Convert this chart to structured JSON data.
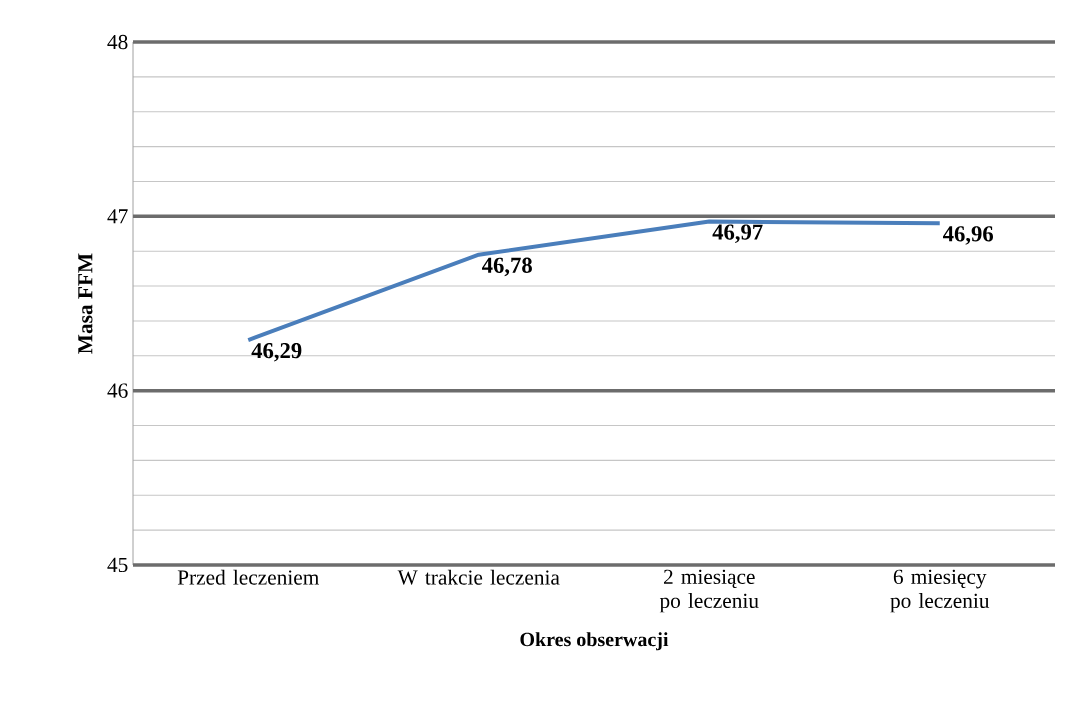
{
  "chart_data": {
    "type": "line",
    "xlabel": "Okres obserwacji",
    "ylabel": "Masa  FFM",
    "categories": [
      "Przed leczeniem",
      "W trakcie leczenia",
      "2 miesiące po leczeniu",
      "6 miesięcy po leczeniu"
    ],
    "values": [
      46.29,
      46.78,
      46.97,
      46.96
    ],
    "value_labels": [
      "46,29",
      "46,78",
      "46,97",
      "46,96"
    ],
    "color": "#4a7ebb",
    "ylim": [
      45,
      48
    ],
    "yticks": [
      45,
      {
        "value": 45.2,
        "label": null
      },
      {
        "value": 45.4,
        "label": null
      },
      {
        "value": 45.6,
        "label": null
      },
      {
        "value": 45.8,
        "label": null
      },
      46,
      {
        "value": 46.2,
        "label": null
      },
      {
        "value": 46.4,
        "label": null
      },
      {
        "value": 46.6,
        "label": null
      },
      {
        "value": 46.8,
        "label": null
      },
      47,
      {
        "value": 47.2,
        "label": null
      },
      {
        "value": 47.4,
        "label": null
      },
      {
        "value": 47.6,
        "label": null
      },
      {
        "value": 47.8,
        "label": null
      },
      48
    ],
    "grid": true,
    "marker": "none",
    "line_style": "solid"
  }
}
